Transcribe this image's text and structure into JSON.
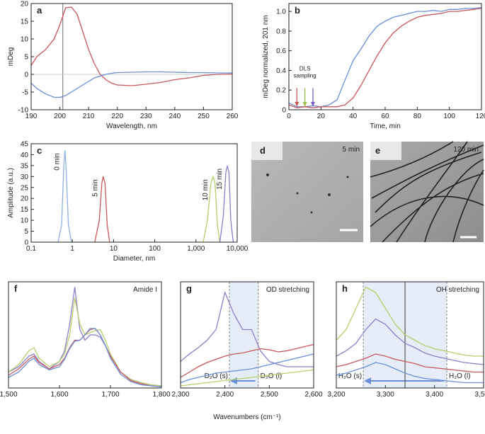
{
  "chart_data": [
    {
      "type": "line",
      "label": "a",
      "xlabel": "Wavelength, nm",
      "ylabel": "mDeg",
      "x": [
        190,
        192,
        195,
        198,
        200,
        202,
        204,
        206,
        208,
        210,
        212,
        214,
        216,
        218,
        220,
        225,
        230,
        235,
        240,
        245,
        250,
        255,
        260
      ],
      "series": [
        {
          "color": "#c8575a",
          "values": [
            2.5,
            5,
            7,
            10,
            14,
            18.8,
            19,
            17,
            12,
            7,
            3,
            0,
            -1.5,
            -2.5,
            -3,
            -3.2,
            -2.8,
            -2.3,
            -1.5,
            -1,
            -0.3,
            0,
            0.1
          ]
        },
        {
          "color": "#6a8fd8",
          "values": [
            -2.5,
            -4,
            -5.5,
            -6.5,
            -6.5,
            -6,
            -5,
            -4,
            -3,
            -2,
            -1,
            -0.5,
            0,
            0.3,
            0.5,
            0.6,
            0.7,
            0.7,
            0.6,
            0.5,
            0.5,
            0.4,
            0.4
          ]
        }
      ],
      "xlim": [
        190,
        260
      ],
      "xticks": [
        190,
        200,
        210,
        220,
        230,
        240,
        250,
        260
      ],
      "ylim": [
        -10,
        20
      ],
      "yticks": [
        -10,
        -5,
        0,
        5,
        10,
        15,
        20
      ],
      "vline": 201
    },
    {
      "type": "line",
      "label": "b",
      "xlabel": "Time, min",
      "ylabel": "mDeg normalized, 201 nm",
      "x": [
        0,
        5,
        10,
        15,
        20,
        25,
        30,
        35,
        40,
        45,
        50,
        55,
        60,
        65,
        70,
        75,
        80,
        85,
        90,
        95,
        100,
        105,
        110,
        115,
        120
      ],
      "series": [
        {
          "color": "#6a8fd8",
          "values": [
            0.07,
            0.03,
            0.03,
            0.04,
            0.03,
            0.05,
            0.1,
            0.3,
            0.5,
            0.62,
            0.75,
            0.85,
            0.9,
            0.94,
            0.96,
            0.98,
            1.0,
            1.0,
            1.01,
            1.0,
            1.02,
            1.02,
            1.03,
            1.03,
            1.04
          ]
        },
        {
          "color": "#c8575a",
          "values": [
            0.05,
            0.02,
            0.03,
            0.02,
            0.03,
            0.03,
            0.03,
            0.05,
            0.12,
            0.25,
            0.4,
            0.55,
            0.68,
            0.78,
            0.85,
            0.9,
            0.94,
            0.96,
            0.97,
            0.98,
            1.0,
            1.0,
            1.01,
            1.02,
            1.03
          ]
        }
      ],
      "xlim": [
        0,
        120
      ],
      "xticks": [
        0,
        20,
        40,
        60,
        80,
        100,
        120
      ],
      "ylim": [
        0,
        1.08
      ],
      "yticks": [
        0,
        0.2,
        0.4,
        0.6,
        0.8,
        {
          "value": 1,
          "label": "1.0"
        }
      ],
      "annotation_lines": [
        "DLS",
        "sampling"
      ],
      "sampling_times": [
        5,
        10,
        15
      ],
      "sampling_colors": [
        "#c8575a",
        "#9bbf4a",
        "#7b5cc4"
      ]
    },
    {
      "type": "line",
      "label": "c",
      "xlabel": "Diameter, nm",
      "ylabel": "Amplitude (a.u.)",
      "xscale": "log",
      "series": [
        {
          "name": "0 min",
          "color": "#8fb0e0",
          "x": [
            0.45,
            0.55,
            0.62,
            0.66,
            0.7,
            0.8,
            0.95
          ],
          "values": [
            0,
            8,
            35,
            42,
            35,
            8,
            0
          ]
        },
        {
          "name": "5 min",
          "color": "#c8575a",
          "x": [
            3.5,
            4.5,
            5.2,
            5.6,
            6.2,
            7,
            8
          ],
          "values": [
            0,
            10,
            27,
            30,
            27,
            8,
            0
          ]
        },
        {
          "name": "10 min",
          "color": "#b5cf6b",
          "x": [
            1500,
            1900,
            2300,
            2600,
            2900,
            3300,
            3800
          ],
          "values": [
            0,
            10,
            27,
            30,
            27,
            8,
            0
          ]
        },
        {
          "name": "15 min",
          "color": "#8d7ec9",
          "x": [
            3800,
            4600,
            5300,
            5800,
            6300,
            7000,
            8000
          ],
          "values": [
            0,
            12,
            32,
            35,
            32,
            10,
            0
          ]
        }
      ],
      "xlim": [
        0.1,
        10000
      ],
      "xticks": [
        0.1,
        1,
        10,
        100,
        {
          "value": 1000,
          "label": "1,000"
        },
        {
          "value": 10000,
          "label": "10,000"
        }
      ],
      "ylim": [
        0,
        45
      ],
      "yticks": [
        0,
        5,
        10,
        15,
        20,
        25,
        30,
        35,
        40,
        45
      ]
    },
    {
      "type": "line",
      "label": "f",
      "annotation": "Amide I",
      "x": [
        1500,
        1520,
        1540,
        1550,
        1560,
        1580,
        1600,
        1610,
        1620,
        1630,
        1640,
        1650,
        1660,
        1670,
        1680,
        1690,
        1700,
        1720,
        1740,
        1760,
        1780,
        1800
      ],
      "series": [
        {
          "color": "#8d7ec9",
          "values": [
            0.15,
            0.2,
            0.3,
            0.32,
            0.25,
            0.18,
            0.25,
            0.35,
            0.6,
            0.95,
            0.55,
            0.45,
            0.5,
            0.5,
            0.48,
            0.4,
            0.3,
            0.15,
            0.08,
            0.05,
            0.03,
            0.02
          ]
        },
        {
          "color": "#b5cf6b",
          "values": [
            0.15,
            0.22,
            0.35,
            0.38,
            0.28,
            0.2,
            0.25,
            0.32,
            0.5,
            0.85,
            0.6,
            0.5,
            0.52,
            0.54,
            0.55,
            0.45,
            0.32,
            0.15,
            0.08,
            0.05,
            0.03,
            0.02
          ]
        },
        {
          "color": "#c8575a",
          "values": [
            0.12,
            0.18,
            0.27,
            0.3,
            0.24,
            0.18,
            0.22,
            0.28,
            0.38,
            0.45,
            0.45,
            0.5,
            0.55,
            0.56,
            0.5,
            0.4,
            0.3,
            0.15,
            0.07,
            0.04,
            0.02,
            0.01
          ]
        },
        {
          "color": "#6a8fd8",
          "values": [
            0.1,
            0.15,
            0.25,
            0.28,
            0.22,
            0.17,
            0.2,
            0.27,
            0.37,
            0.44,
            0.45,
            0.5,
            0.56,
            0.56,
            0.5,
            0.4,
            0.28,
            0.13,
            0.06,
            0.03,
            0.02,
            0.01
          ]
        }
      ],
      "xlim": [
        1500,
        1800
      ],
      "xticks": [
        {
          "value": 1500,
          "label": "1,500"
        },
        {
          "value": 1600,
          "label": "1,600"
        },
        {
          "value": 1700,
          "label": "1,700"
        },
        {
          "value": 1800,
          "label": "1,800"
        }
      ],
      "ylim": [
        0,
        1
      ]
    },
    {
      "type": "line",
      "label": "g",
      "annotation": "OD stretching",
      "xlabel": "Wavenumbers (cm⁻¹)",
      "x": [
        2300,
        2320,
        2340,
        2360,
        2380,
        2400,
        2420,
        2440,
        2460,
        2480,
        2500,
        2520,
        2540,
        2560,
        2580,
        2600
      ],
      "series": [
        {
          "color": "#8d7ec9",
          "values": [
            0.25,
            0.32,
            0.38,
            0.45,
            0.55,
            0.9,
            0.7,
            0.55,
            0.55,
            0.35,
            0.25,
            0.22,
            0.2,
            0.2,
            0.2,
            0.2
          ]
        },
        {
          "color": "#c8575a",
          "values": [
            0.1,
            0.15,
            0.2,
            0.24,
            0.27,
            0.3,
            0.32,
            0.33,
            0.35,
            0.37,
            0.36,
            0.34,
            0.35,
            0.37,
            0.39,
            0.41
          ]
        },
        {
          "color": "#6a8fd8",
          "values": [
            0.05,
            0.08,
            0.1,
            0.12,
            0.14,
            0.15,
            0.16,
            0.17,
            0.18,
            0.2,
            0.22,
            0.24,
            0.26,
            0.28,
            0.3,
            0.32
          ]
        },
        {
          "color": "#b5cf6b",
          "values": [
            0.02,
            0.03,
            0.04,
            0.05,
            0.06,
            0.07,
            0.08,
            0.09,
            0.1,
            0.11,
            0.12,
            0.13,
            0.14,
            0.15,
            0.16,
            0.17
          ]
        }
      ],
      "xlim": [
        2300,
        2600
      ],
      "xticks": [
        {
          "value": 2300,
          "label": "2,300"
        },
        {
          "value": 2400,
          "label": "2,400"
        },
        {
          "value": 2500,
          "label": "2,500"
        },
        {
          "value": 2600,
          "label": "2,600"
        }
      ],
      "ylim": [
        0,
        1
      ],
      "band": [
        2410,
        2475
      ],
      "band_labels": [
        "D₂O (s)",
        "D₂O (l)"
      ]
    },
    {
      "type": "line",
      "label": "h",
      "annotation": "OH stretching",
      "x": [
        3200,
        3220,
        3240,
        3260,
        3280,
        3300,
        3320,
        3340,
        3360,
        3380,
        3400,
        3420,
        3440,
        3460,
        3480,
        3500
      ],
      "series": [
        {
          "color": "#b5cf6b",
          "values": [
            0.45,
            0.55,
            0.75,
            0.95,
            0.9,
            0.75,
            0.6,
            0.5,
            0.45,
            0.4,
            0.37,
            0.35,
            0.33,
            0.31,
            0.3,
            0.3
          ]
        },
        {
          "color": "#8d7ec9",
          "values": [
            0.3,
            0.35,
            0.42,
            0.55,
            0.65,
            0.6,
            0.5,
            0.42,
            0.38,
            0.33,
            0.3,
            0.28,
            0.26,
            0.24,
            0.23,
            0.22
          ]
        },
        {
          "color": "#c8575a",
          "values": [
            0.2,
            0.22,
            0.25,
            0.28,
            0.32,
            0.3,
            0.27,
            0.25,
            0.23,
            0.2,
            0.19,
            0.18,
            0.17,
            0.16,
            0.15,
            0.15
          ]
        },
        {
          "color": "#6a8fd8",
          "values": [
            0.12,
            0.14,
            0.17,
            0.2,
            0.24,
            0.22,
            0.18,
            0.14,
            0.11,
            0.09,
            0.08,
            0.07,
            0.06,
            0.05,
            0.05,
            0.05
          ]
        }
      ],
      "xlim": [
        3200,
        3500
      ],
      "xticks": [
        {
          "value": 3200,
          "label": "3,200"
        },
        {
          "value": 3300,
          "label": "3,300"
        },
        {
          "value": 3400,
          "label": "3,400"
        },
        {
          "value": 3500,
          "label": "3,500"
        }
      ],
      "ylim": [
        0,
        1
      ],
      "band": [
        3255,
        3425
      ],
      "vline": 3340,
      "band_labels": [
        "H₂O (s)",
        "H₂O (l)"
      ]
    }
  ],
  "images": [
    {
      "label": "d",
      "caption": "5 min"
    },
    {
      "label": "e",
      "caption": "120 min"
    }
  ]
}
